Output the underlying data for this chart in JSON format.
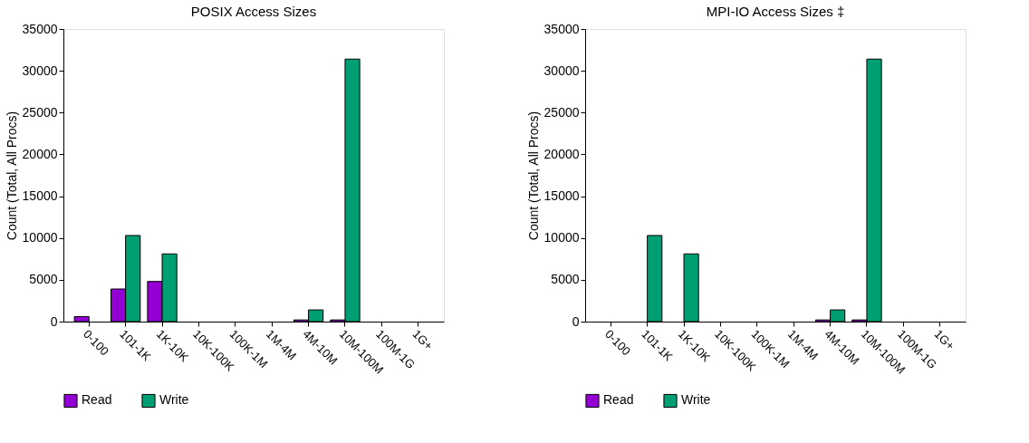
{
  "chart_data": [
    {
      "type": "bar",
      "title": "POSIX Access Sizes",
      "ylabel": "Count (Total, All Procs)",
      "categories": [
        "0-100",
        "101-1K",
        "1K-10K",
        "10K-100K",
        "100K-1M",
        "1M-4M",
        "4M-10M",
        "10M-100M",
        "100M-1G",
        "1G+"
      ],
      "series": [
        {
          "name": "Read",
          "color": "#9400d3",
          "values": [
            600,
            3900,
            4800,
            0,
            0,
            0,
            200,
            200,
            0,
            0
          ]
        },
        {
          "name": "Write",
          "color": "#009e73",
          "values": [
            0,
            10300,
            8100,
            0,
            0,
            0,
            1400,
            31400,
            0,
            0
          ]
        }
      ],
      "ylim": [
        0,
        35000
      ],
      "yticks": [
        0,
        5000,
        10000,
        15000,
        20000,
        25000,
        30000,
        35000
      ],
      "grid": false,
      "legend": "bottom"
    },
    {
      "type": "bar",
      "title": "MPI-IO Access Sizes ‡",
      "ylabel": "Count (Total, All Procs)",
      "categories": [
        "0-100",
        "101-1K",
        "1K-10K",
        "10K-100K",
        "100K-1M",
        "1M-4M",
        "4M-10M",
        "10M-100M",
        "100M-1G",
        "1G+"
      ],
      "series": [
        {
          "name": "Read",
          "color": "#9400d3",
          "values": [
            0,
            0,
            0,
            0,
            0,
            0,
            200,
            200,
            0,
            0
          ]
        },
        {
          "name": "Write",
          "color": "#009e73",
          "values": [
            0,
            10300,
            8100,
            0,
            0,
            0,
            1400,
            31400,
            0,
            0
          ]
        }
      ],
      "ylim": [
        0,
        35000
      ],
      "yticks": [
        0,
        5000,
        10000,
        15000,
        20000,
        25000,
        30000,
        35000
      ],
      "grid": false,
      "legend": "bottom"
    }
  ]
}
